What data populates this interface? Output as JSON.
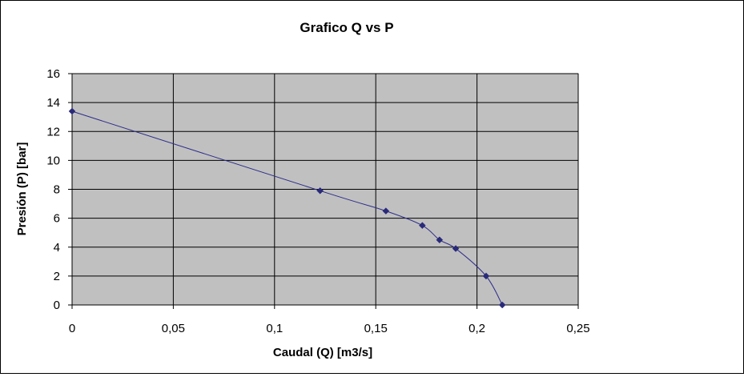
{
  "chart_data": {
    "type": "line",
    "title": "Grafico Q vs P",
    "xlabel": "Caudal (Q) [m3/s]",
    "ylabel": "Presión (P) [bar]",
    "xlim": [
      0,
      0.25
    ],
    "ylim": [
      0,
      16
    ],
    "x_ticks": [
      0,
      0.05,
      0.1,
      0.15,
      0.2,
      0.25
    ],
    "x_tick_labels": [
      "0",
      "0,05",
      "0,1",
      "0,15",
      "0,2",
      "0,25"
    ],
    "y_ticks": [
      0,
      2,
      4,
      6,
      8,
      10,
      12,
      14,
      16
    ],
    "y_tick_labels": [
      "0",
      "2",
      "4",
      "6",
      "8",
      "10",
      "12",
      "14",
      "16"
    ],
    "grid": true,
    "legend": false,
    "plot_background": "#c0c0c0",
    "line_color": "#2e2e8c",
    "marker_color": "#2a2a7a",
    "marker": "diamond",
    "series": [
      {
        "x": [
          0,
          0.1225,
          0.155,
          0.173,
          0.1815,
          0.1895,
          0.2045,
          0.2125
        ],
        "y": [
          13.4,
          7.9,
          6.5,
          5.5,
          4.5,
          3.9,
          2.0,
          0.0
        ]
      }
    ]
  }
}
